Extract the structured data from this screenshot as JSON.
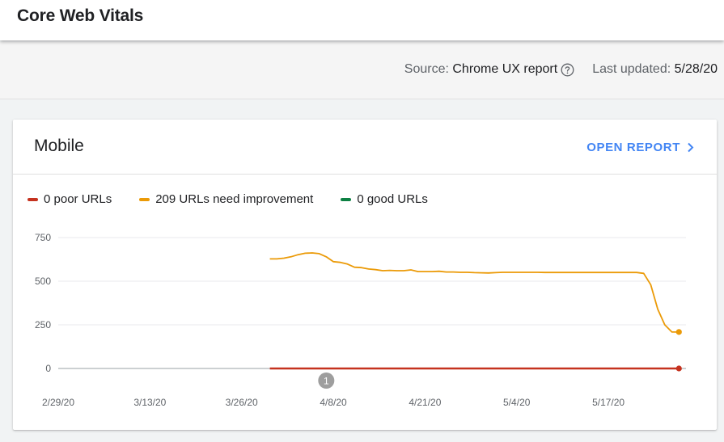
{
  "header": {
    "title": "Core Web Vitals"
  },
  "meta": {
    "source_label": "Source:",
    "source_value": "Chrome UX report",
    "updated_label": "Last updated:",
    "updated_value": "5/28/20"
  },
  "card": {
    "title": "Mobile",
    "open_report_label": "OPEN REPORT"
  },
  "colors": {
    "poor": "#c5321f",
    "improve": "#eb9a07",
    "good": "#0d8043",
    "link": "#4285f4"
  },
  "chart_data": {
    "type": "line",
    "legend": [
      {
        "name": "poor",
        "label": "0 poor URLs"
      },
      {
        "name": "improve",
        "label": "209 URLs need improvement"
      },
      {
        "name": "good",
        "label": "0 good URLs"
      }
    ],
    "y_ticks": [
      "750",
      "500",
      "250",
      "0"
    ],
    "ylim": [
      0,
      750
    ],
    "x_ticks": [
      "2/29/20",
      "3/13/20",
      "3/26/20",
      "4/8/20",
      "4/21/20",
      "5/4/20",
      "5/17/20"
    ],
    "xlim_days": [
      0,
      89
    ],
    "annotation": {
      "label": "1",
      "day": 38
    },
    "series": [
      {
        "name": "improve",
        "days": [
          30,
          31,
          32,
          33,
          34,
          35,
          36,
          37,
          38,
          39,
          40,
          41,
          42,
          43,
          44,
          45,
          46,
          47,
          48,
          49,
          50,
          51,
          52,
          53,
          54,
          55,
          56,
          57,
          58,
          59,
          60,
          61,
          62,
          63,
          64,
          65,
          66,
          67,
          68,
          69,
          70,
          71,
          72,
          73,
          74,
          75,
          76,
          77,
          78,
          79,
          80,
          81,
          82,
          83,
          84,
          85,
          86,
          87,
          88
        ],
        "values": [
          628,
          628,
          632,
          640,
          652,
          660,
          662,
          658,
          640,
          612,
          608,
          598,
          580,
          578,
          570,
          566,
          560,
          562,
          560,
          560,
          565,
          555,
          555,
          555,
          557,
          553,
          553,
          551,
          551,
          549,
          548,
          547,
          549,
          551,
          551,
          551,
          551,
          551,
          551,
          550,
          550,
          550,
          550,
          550,
          550,
          550,
          550,
          550,
          550,
          550,
          550,
          550,
          550,
          545,
          480,
          340,
          250,
          209,
          209
        ],
        "end_value": 209
      },
      {
        "name": "poor",
        "days": [
          30,
          88
        ],
        "values": [
          0,
          0
        ],
        "end_value": 0
      }
    ]
  }
}
